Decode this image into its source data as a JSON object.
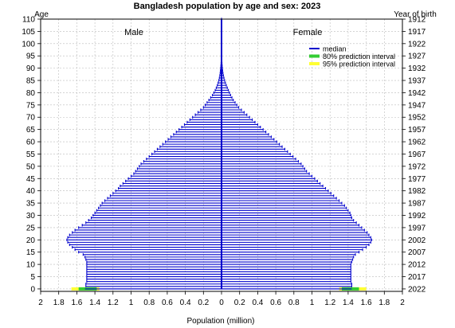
{
  "chart_data": {
    "type": "bar",
    "title": "Bangladesh population by age and sex: 2023",
    "xlabel": "Population (million)",
    "ylabel_left": "Age",
    "ylabel_right": "Year of birth",
    "xlim": [
      -2,
      2
    ],
    "ylim": [
      -1,
      110
    ],
    "x_ticks": [
      -2,
      -1.8,
      -1.6,
      -1.4,
      -1.2,
      -1,
      -0.8,
      -0.6,
      -0.4,
      -0.2,
      0,
      0.2,
      0.4,
      0.6,
      0.8,
      1,
      1.2,
      1.4,
      1.6,
      1.8,
      2
    ],
    "x_tick_labels": [
      "2",
      "1.8",
      "1.6",
      "1.4",
      "1.2",
      "1",
      "0.8",
      "0.6",
      "0.4",
      "0.2",
      "0",
      "0.2",
      "0.4",
      "0.6",
      "0.8",
      "1",
      "1.2",
      "1.4",
      "1.6",
      "1.8",
      "2"
    ],
    "y_ticks": [
      0,
      5,
      10,
      15,
      20,
      25,
      30,
      35,
      40,
      45,
      50,
      55,
      60,
      65,
      70,
      75,
      80,
      85,
      90,
      95,
      100,
      105,
      110
    ],
    "birth_year_labels": [
      "2022",
      "2017",
      "2012",
      "2007",
      "2002",
      "1997",
      "1992",
      "1987",
      "1982",
      "1977",
      "1972",
      "1967",
      "1962",
      "1957",
      "1952",
      "1947",
      "1942",
      "1937",
      "1932",
      "1927",
      "1922",
      "1917",
      "1912"
    ],
    "grid": true,
    "panel_labels": {
      "male": "Male",
      "female": "Female"
    },
    "legend": {
      "position": "top-right",
      "items": [
        {
          "label": "median",
          "color": "#0000cc"
        },
        {
          "label": "80% prediction interval",
          "color": "#33cc33"
        },
        {
          "label": "95% prediction interval",
          "color": "#ffff33"
        }
      ]
    },
    "colors": {
      "median": "#0000cc",
      "pi80": "#33cc33",
      "pi95": "#ffff33",
      "grid": "#bbbbbb"
    },
    "ages": [
      0,
      1,
      2,
      3,
      4,
      5,
      6,
      7,
      8,
      9,
      10,
      11,
      12,
      13,
      14,
      15,
      16,
      17,
      18,
      19,
      20,
      21,
      22,
      23,
      24,
      25,
      26,
      27,
      28,
      29,
      30,
      31,
      32,
      33,
      34,
      35,
      36,
      37,
      38,
      39,
      40,
      41,
      42,
      43,
      44,
      45,
      46,
      47,
      48,
      49,
      50,
      51,
      52,
      53,
      54,
      55,
      56,
      57,
      58,
      59,
      60,
      61,
      62,
      63,
      64,
      65,
      66,
      67,
      68,
      69,
      70,
      71,
      72,
      73,
      74,
      75,
      76,
      77,
      78,
      79,
      80,
      81,
      82,
      83,
      84,
      85,
      86,
      87,
      88,
      89,
      90,
      91,
      92,
      93,
      94,
      95,
      96,
      97,
      98,
      99,
      100,
      101,
      102,
      103,
      104,
      105,
      106,
      107,
      108,
      109,
      110
    ],
    "series": [
      {
        "name": "Male",
        "values": [
          1.51,
          1.5,
          1.5,
          1.49,
          1.49,
          1.49,
          1.49,
          1.49,
          1.49,
          1.49,
          1.49,
          1.49,
          1.5,
          1.51,
          1.53,
          1.58,
          1.62,
          1.65,
          1.68,
          1.7,
          1.71,
          1.7,
          1.68,
          1.65,
          1.62,
          1.58,
          1.54,
          1.5,
          1.47,
          1.44,
          1.42,
          1.4,
          1.38,
          1.36,
          1.34,
          1.32,
          1.29,
          1.26,
          1.23,
          1.2,
          1.17,
          1.14,
          1.12,
          1.09,
          1.06,
          1.03,
          1.0,
          0.97,
          0.95,
          0.93,
          0.91,
          0.89,
          0.86,
          0.83,
          0.8,
          0.77,
          0.74,
          0.71,
          0.68,
          0.65,
          0.62,
          0.59,
          0.56,
          0.53,
          0.5,
          0.47,
          0.44,
          0.41,
          0.38,
          0.35,
          0.32,
          0.29,
          0.26,
          0.23,
          0.2,
          0.18,
          0.16,
          0.14,
          0.12,
          0.1,
          0.085,
          0.07,
          0.058,
          0.047,
          0.038,
          0.03,
          0.024,
          0.019,
          0.015,
          0.012,
          0.009,
          0.007,
          0.005,
          0.004,
          0.003,
          0.002,
          0.0015,
          0.001,
          0.0008,
          0.0006,
          0.0005,
          0.0004,
          0.0003,
          0.0002,
          0.0002,
          0.0001,
          0.0001,
          0.0001,
          0.0001,
          0.0001,
          0.0001
        ]
      },
      {
        "name": "Female",
        "values": [
          1.44,
          1.44,
          1.44,
          1.43,
          1.43,
          1.43,
          1.43,
          1.43,
          1.43,
          1.43,
          1.43,
          1.44,
          1.45,
          1.46,
          1.48,
          1.52,
          1.56,
          1.6,
          1.63,
          1.65,
          1.66,
          1.65,
          1.63,
          1.61,
          1.58,
          1.55,
          1.52,
          1.49,
          1.46,
          1.44,
          1.43,
          1.42,
          1.4,
          1.38,
          1.36,
          1.33,
          1.3,
          1.27,
          1.24,
          1.21,
          1.18,
          1.15,
          1.12,
          1.09,
          1.06,
          1.03,
          1.0,
          0.97,
          0.94,
          0.92,
          0.9,
          0.88,
          0.85,
          0.82,
          0.79,
          0.76,
          0.73,
          0.7,
          0.67,
          0.64,
          0.61,
          0.58,
          0.55,
          0.52,
          0.49,
          0.46,
          0.43,
          0.4,
          0.37,
          0.34,
          0.31,
          0.28,
          0.25,
          0.22,
          0.19,
          0.17,
          0.15,
          0.13,
          0.115,
          0.1,
          0.088,
          0.076,
          0.064,
          0.053,
          0.043,
          0.034,
          0.027,
          0.021,
          0.016,
          0.012,
          0.009,
          0.007,
          0.005,
          0.004,
          0.003,
          0.002,
          0.0015,
          0.001,
          0.0008,
          0.0006,
          0.0005,
          0.0004,
          0.0003,
          0.0002,
          0.0002,
          0.0001,
          0.0001,
          0.0001,
          0.0001,
          0.0001,
          0.0001
        ]
      }
    ],
    "prediction_interval_age0": {
      "male": {
        "pi80": [
          1.38,
          1.58
        ],
        "pi95": [
          1.35,
          1.66
        ]
      },
      "female": {
        "pi80": [
          1.33,
          1.52
        ],
        "pi95": [
          1.3,
          1.6
        ]
      }
    }
  }
}
